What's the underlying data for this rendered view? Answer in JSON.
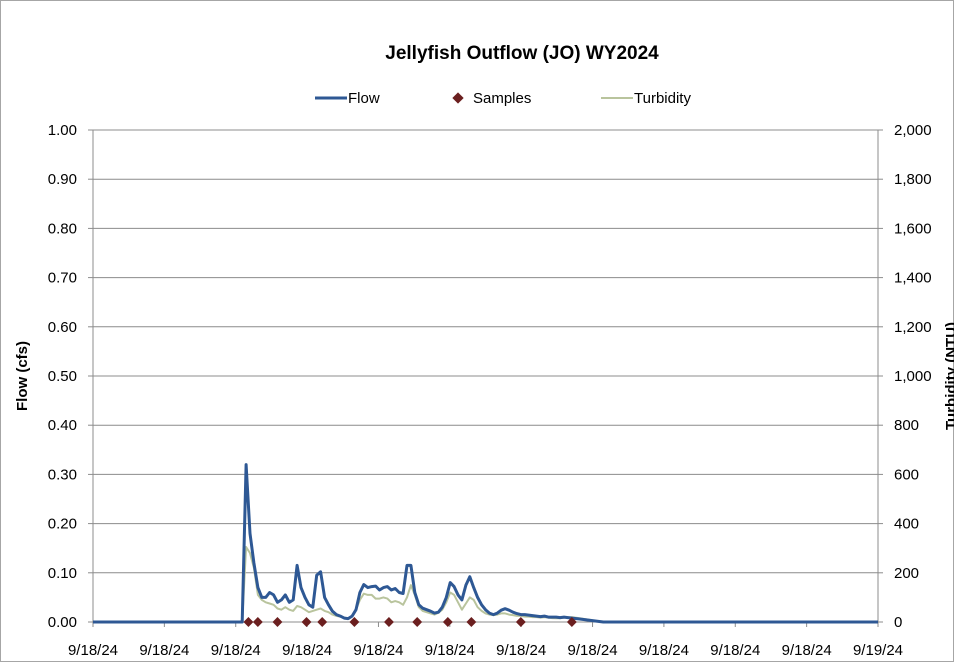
{
  "chart_data": {
    "type": "line",
    "title": "Jellyfish Outflow (JO) WY2024",
    "ylabel": "Flow (cfs)",
    "y2label": "Turbidity (NTU)",
    "ylim": [
      0,
      1.0
    ],
    "y2lim": [
      0,
      2000
    ],
    "yticks": [
      "0.00",
      "0.10",
      "0.20",
      "0.30",
      "0.40",
      "0.50",
      "0.60",
      "0.70",
      "0.80",
      "0.90",
      "1.00"
    ],
    "y2ticks": [
      "0",
      "200",
      "400",
      "600",
      "800",
      "1,000",
      "1,200",
      "1,400",
      "1,600",
      "1,800",
      "2,000"
    ],
    "xticks": [
      "9/18/24",
      "9/18/24",
      "9/18/24",
      "9/18/24",
      "9/18/24",
      "9/18/24",
      "9/18/24",
      "9/18/24",
      "9/18/24",
      "9/18/24",
      "9/18/24",
      "9/19/24"
    ],
    "xlim": [
      0,
      1
    ],
    "grid": true,
    "legend": "top-center",
    "colors": {
      "flow": "#2e5894",
      "samples": "#6b1f1f",
      "turbidity": "#b9c49d"
    },
    "series": [
      {
        "name": "Flow",
        "axis": "left",
        "x": [
          0,
          0.08,
          0.15,
          0.19,
          0.195,
          0.2,
          0.205,
          0.21,
          0.215,
          0.22,
          0.225,
          0.23,
          0.235,
          0.24,
          0.245,
          0.25,
          0.255,
          0.26,
          0.265,
          0.27,
          0.275,
          0.28,
          0.285,
          0.29,
          0.295,
          0.3,
          0.305,
          0.31,
          0.315,
          0.32,
          0.325,
          0.33,
          0.335,
          0.34,
          0.345,
          0.35,
          0.355,
          0.36,
          0.365,
          0.37,
          0.375,
          0.38,
          0.385,
          0.39,
          0.395,
          0.4,
          0.405,
          0.41,
          0.415,
          0.42,
          0.425,
          0.43,
          0.435,
          0.44,
          0.445,
          0.45,
          0.455,
          0.46,
          0.465,
          0.47,
          0.475,
          0.48,
          0.485,
          0.49,
          0.495,
          0.5,
          0.505,
          0.51,
          0.515,
          0.52,
          0.525,
          0.53,
          0.535,
          0.54,
          0.545,
          0.55,
          0.555,
          0.56,
          0.565,
          0.57,
          0.575,
          0.58,
          0.585,
          0.59,
          0.595,
          0.6,
          0.61,
          0.62,
          0.63,
          0.64,
          0.65,
          0.66,
          0.67,
          0.68,
          0.69,
          0.7,
          0.72,
          0.75,
          0.8,
          0.9,
          1.0
        ],
        "values": [
          0,
          0,
          0,
          0,
          0.32,
          0.18,
          0.12,
          0.07,
          0.05,
          0.05,
          0.06,
          0.055,
          0.04,
          0.045,
          0.055,
          0.04,
          0.045,
          0.115,
          0.07,
          0.05,
          0.035,
          0.03,
          0.095,
          0.102,
          0.05,
          0.035,
          0.022,
          0.015,
          0.012,
          0.008,
          0.007,
          0.012,
          0.025,
          0.06,
          0.076,
          0.07,
          0.072,
          0.073,
          0.065,
          0.07,
          0.072,
          0.065,
          0.068,
          0.06,
          0.058,
          0.115,
          0.115,
          0.06,
          0.035,
          0.028,
          0.025,
          0.022,
          0.018,
          0.02,
          0.03,
          0.05,
          0.08,
          0.072,
          0.055,
          0.045,
          0.075,
          0.092,
          0.07,
          0.05,
          0.035,
          0.025,
          0.018,
          0.015,
          0.018,
          0.024,
          0.027,
          0.024,
          0.02,
          0.017,
          0.015,
          0.015,
          0.014,
          0.013,
          0.012,
          0.011,
          0.012,
          0.01,
          0.01,
          0.01,
          0.009,
          0.01,
          0.008,
          0.006,
          0.004,
          0.002,
          0,
          0,
          0,
          0,
          0,
          0,
          0,
          0,
          0,
          0,
          0
        ]
      },
      {
        "name": "Samples",
        "axis": "left",
        "x": [
          0.198,
          0.21,
          0.235,
          0.272,
          0.292,
          0.333,
          0.377,
          0.413,
          0.452,
          0.482,
          0.545,
          0.61
        ],
        "values": [
          0,
          0,
          0,
          0,
          0,
          0,
          0,
          0,
          0,
          0,
          0,
          0
        ]
      },
      {
        "name": "Turbidity",
        "axis": "right",
        "x": [
          0,
          0.08,
          0.15,
          0.19,
          0.195,
          0.2,
          0.205,
          0.21,
          0.215,
          0.22,
          0.225,
          0.23,
          0.235,
          0.24,
          0.245,
          0.25,
          0.255,
          0.26,
          0.265,
          0.27,
          0.275,
          0.28,
          0.285,
          0.29,
          0.295,
          0.3,
          0.305,
          0.31,
          0.315,
          0.32,
          0.325,
          0.33,
          0.335,
          0.34,
          0.345,
          0.35,
          0.355,
          0.36,
          0.365,
          0.37,
          0.375,
          0.38,
          0.385,
          0.39,
          0.395,
          0.4,
          0.405,
          0.41,
          0.415,
          0.42,
          0.425,
          0.43,
          0.435,
          0.44,
          0.445,
          0.45,
          0.455,
          0.46,
          0.465,
          0.47,
          0.475,
          0.48,
          0.485,
          0.49,
          0.495,
          0.5,
          0.505,
          0.51,
          0.515,
          0.52,
          0.525,
          0.53,
          0.535,
          0.54,
          0.545,
          0.55,
          0.555,
          0.56,
          0.565,
          0.57,
          0.575,
          0.58,
          0.585,
          0.59,
          0.595,
          0.6,
          0.61,
          0.62,
          0.63,
          0.64,
          0.65,
          0.66,
          0.67,
          0.68,
          0.69,
          0.7,
          0.72,
          0.75,
          0.8,
          0.9,
          1.0
        ],
        "values": [
          0,
          0,
          0,
          0,
          305,
          280,
          220,
          110,
          90,
          80,
          75,
          70,
          55,
          50,
          60,
          50,
          45,
          65,
          60,
          50,
          40,
          45,
          50,
          55,
          45,
          40,
          30,
          25,
          22,
          18,
          15,
          25,
          50,
          90,
          115,
          110,
          110,
          95,
          95,
          100,
          95,
          80,
          85,
          80,
          70,
          100,
          150,
          110,
          60,
          45,
          40,
          35,
          30,
          38,
          50,
          80,
          120,
          110,
          80,
          50,
          75,
          100,
          90,
          60,
          45,
          35,
          30,
          28,
          30,
          35,
          35,
          30,
          28,
          25,
          25,
          22,
          22,
          20,
          20,
          18,
          20,
          18,
          16,
          15,
          15,
          18,
          20,
          15,
          10,
          5,
          0,
          0,
          0,
          0,
          0,
          0,
          0,
          0,
          0,
          0,
          0
        ]
      }
    ]
  }
}
